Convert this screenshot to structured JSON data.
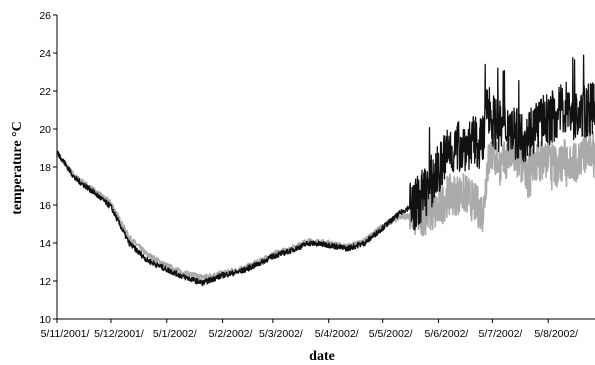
{
  "chart_data": {
    "type": "line",
    "title": "",
    "xlabel": "date",
    "ylabel": "temperature °C",
    "ylim": [
      10,
      26
    ],
    "yticks": [
      10,
      12,
      14,
      16,
      18,
      20,
      22,
      24,
      26
    ],
    "xlim": [
      "2001-11-05",
      "2002-08-31"
    ],
    "xticks": [
      {
        "date": "2001-11-05",
        "label": "5/11/2001/"
      },
      {
        "date": "2001-12-05",
        "label": "5/12/2001/"
      },
      {
        "date": "2002-01-05",
        "label": "5/1/2002/"
      },
      {
        "date": "2002-02-05",
        "label": "5/2/2002/"
      },
      {
        "date": "2002-03-05",
        "label": "5/3/2002/"
      },
      {
        "date": "2002-04-05",
        "label": "5/4/2002/"
      },
      {
        "date": "2002-05-05",
        "label": "5/5/2002/"
      },
      {
        "date": "2002-06-05",
        "label": "5/6/2002/"
      },
      {
        "date": "2002-07-05",
        "label": "5/7/2002/"
      },
      {
        "date": "2002-08-05",
        "label": "5/8/2002/"
      }
    ],
    "grid": false,
    "legend": "none",
    "series": [
      {
        "color": "#aaaaaa",
        "x": [
          "2001-11-05",
          "2001-11-15",
          "2001-11-25",
          "2001-12-05",
          "2001-12-15",
          "2001-12-25",
          "2002-01-05",
          "2002-01-15",
          "2002-01-25",
          "2002-02-05",
          "2002-02-15",
          "2002-02-25",
          "2002-03-05",
          "2002-03-15",
          "2002-03-25",
          "2002-04-05",
          "2002-04-15",
          "2002-04-25",
          "2002-05-05",
          "2002-05-15",
          "2002-05-25",
          "2002-06-05",
          "2002-06-10",
          "2002-06-20",
          "2002-06-30",
          "2002-07-02",
          "2002-07-05",
          "2002-07-10",
          "2002-07-15",
          "2002-07-20",
          "2002-07-25",
          "2002-07-30",
          "2002-08-05",
          "2002-08-10",
          "2002-08-15",
          "2002-08-20",
          "2002-08-25",
          "2002-08-31"
        ],
        "y": [
          18.7,
          17.5,
          16.8,
          16.1,
          14.3,
          13.4,
          12.8,
          12.4,
          12.2,
          12.4,
          12.6,
          13.0,
          13.4,
          13.7,
          14.1,
          14.0,
          13.8,
          14.1,
          14.9,
          15.4,
          15.4,
          15.7,
          16.5,
          16.6,
          15.6,
          18.0,
          18.8,
          18.0,
          18.8,
          18.2,
          17.9,
          18.3,
          18.5,
          18.0,
          18.5,
          18.2,
          18.7,
          19.0
        ]
      },
      {
        "color": "#111111",
        "x": [
          "2001-11-05",
          "2001-11-15",
          "2001-11-25",
          "2001-12-05",
          "2001-12-15",
          "2001-12-25",
          "2002-01-05",
          "2002-01-15",
          "2002-01-25",
          "2002-02-05",
          "2002-02-15",
          "2002-02-25",
          "2002-03-05",
          "2002-03-15",
          "2002-03-25",
          "2002-04-05",
          "2002-04-15",
          "2002-04-25",
          "2002-05-05",
          "2002-05-15",
          "2002-05-25",
          "2002-06-05",
          "2002-06-10",
          "2002-06-20",
          "2002-06-30",
          "2002-07-02",
          "2002-07-05",
          "2002-07-10",
          "2002-07-15",
          "2002-07-20",
          "2002-07-25",
          "2002-07-30",
          "2002-08-05",
          "2002-08-10",
          "2002-08-15",
          "2002-08-20",
          "2002-08-25",
          "2002-08-31"
        ],
        "y": [
          18.8,
          17.4,
          16.7,
          15.9,
          14.0,
          13.1,
          12.6,
          12.2,
          11.9,
          12.3,
          12.5,
          12.9,
          13.3,
          13.6,
          14.0,
          13.9,
          13.7,
          14.0,
          14.8,
          15.6,
          16.2,
          17.8,
          18.8,
          19.2,
          19.3,
          21.5,
          20.5,
          20.0,
          20.2,
          19.5,
          19.8,
          20.3,
          20.5,
          20.8,
          21.2,
          20.6,
          20.9,
          21.1
        ]
      }
    ]
  }
}
